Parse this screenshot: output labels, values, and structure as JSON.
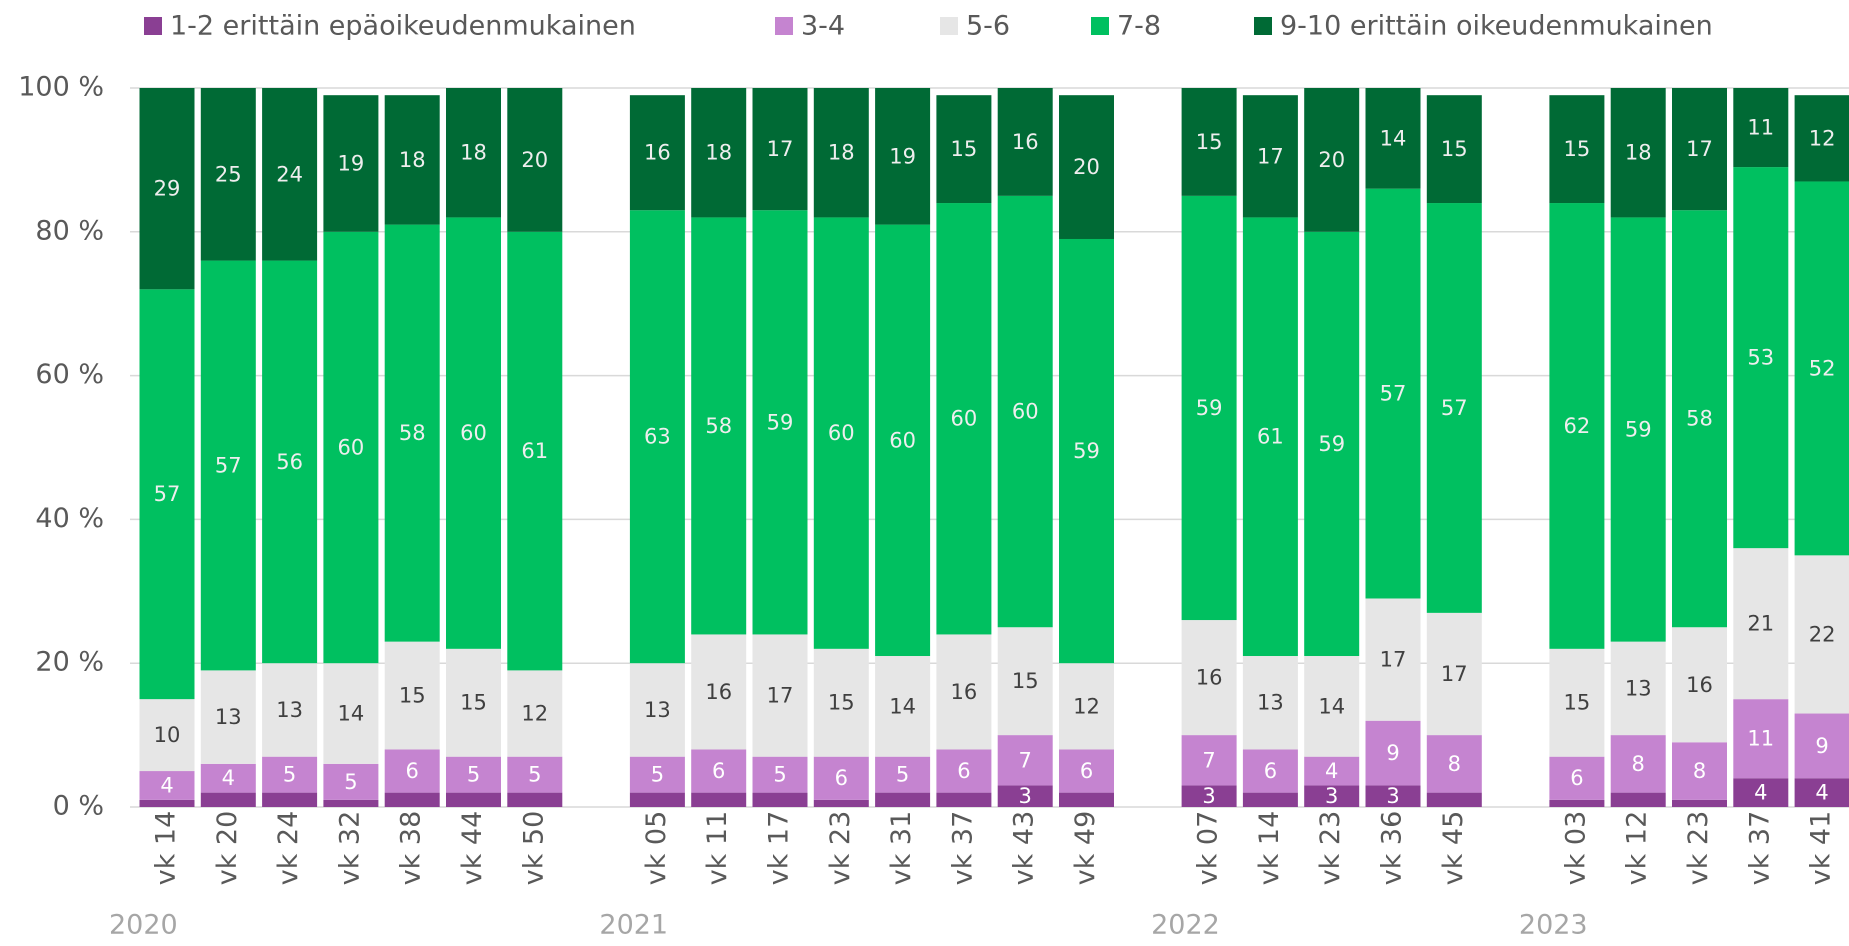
{
  "chart_data": {
    "type": "stacked_bar",
    "categories": [
      "vk 14",
      "vk 20",
      "vk 24",
      "vk 32",
      "vk 38",
      "vk 44",
      "vk 50",
      null,
      "vk 05",
      "vk 11",
      "vk 17",
      "vk 23",
      "vk 31",
      "vk 37",
      "vk 43",
      "vk 49",
      null,
      "vk 07",
      "vk 14",
      "vk 23",
      "vk 36",
      "vk 45",
      null,
      "vk 03",
      "vk 12",
      "vk 23",
      "vk 37",
      "vk 41"
    ],
    "groups": [
      "2020",
      "2021",
      "2022",
      "2023"
    ],
    "series": [
      {
        "name": "1-2 erittäin epäoikeudenmukainen",
        "color": "#8a3f93",
        "label_color": "#ffffff",
        "values": [
          1,
          2,
          2,
          1,
          2,
          2,
          2,
          null,
          2,
          2,
          2,
          1,
          2,
          2,
          3,
          2,
          null,
          3,
          2,
          3,
          3,
          2,
          null,
          1,
          2,
          1,
          4,
          4
        ]
      },
      {
        "name": "3-4",
        "color": "#c584d0",
        "label_color": "#ffffff",
        "values": [
          4,
          4,
          5,
          5,
          6,
          5,
          5,
          null,
          5,
          6,
          5,
          6,
          5,
          6,
          7,
          6,
          null,
          7,
          6,
          4,
          9,
          8,
          null,
          6,
          8,
          8,
          11,
          9
        ]
      },
      {
        "name": "5-6",
        "color": "#e6e6e6",
        "label_color": "#404040",
        "values": [
          10,
          13,
          13,
          14,
          15,
          15,
          12,
          null,
          13,
          16,
          17,
          15,
          14,
          16,
          15,
          12,
          null,
          16,
          13,
          14,
          17,
          17,
          null,
          15,
          13,
          16,
          21,
          22
        ]
      },
      {
        "name": "7-8",
        "color": "#00c060",
        "label_color": "#eeeeee",
        "values": [
          57,
          57,
          56,
          60,
          58,
          60,
          61,
          null,
          63,
          58,
          59,
          60,
          60,
          60,
          60,
          59,
          null,
          59,
          61,
          59,
          57,
          57,
          null,
          62,
          59,
          58,
          53,
          52
        ]
      },
      {
        "name": "9-10 erittäin oikeudenmukainen",
        "color": "#006a35",
        "label_color": "#eeeeee",
        "values": [
          29,
          25,
          24,
          19,
          18,
          18,
          20,
          null,
          16,
          18,
          17,
          18,
          19,
          15,
          16,
          20,
          null,
          15,
          17,
          20,
          14,
          15,
          null,
          15,
          18,
          17,
          11,
          12
        ]
      }
    ],
    "label_min": 3,
    "ylim": [
      0,
      100
    ],
    "yticks": [
      {
        "value": 0,
        "label": "0 %"
      },
      {
        "value": 20,
        "label": "20 %"
      },
      {
        "value": 40,
        "label": "40 %"
      },
      {
        "value": 60,
        "label": "60 %"
      },
      {
        "value": 80,
        "label": "80 %"
      },
      {
        "value": 100,
        "label": "100 %"
      }
    ],
    "grid": true
  }
}
